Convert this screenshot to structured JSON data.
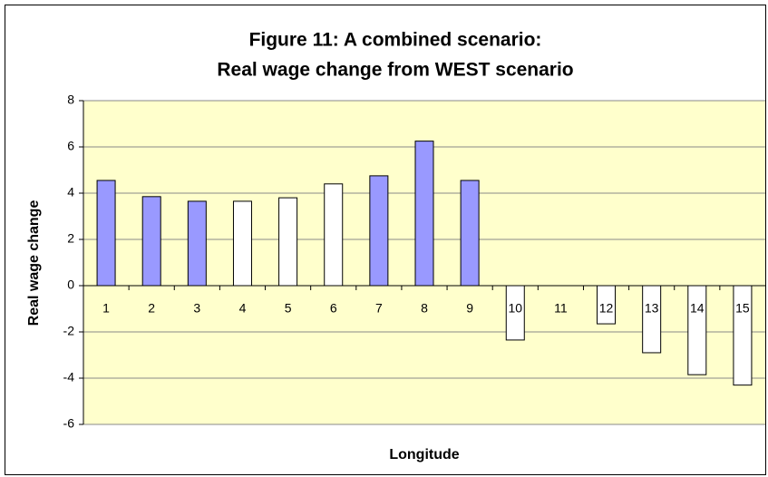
{
  "chart_data": {
    "type": "bar",
    "title_lines": [
      "Figure 11: A combined scenario:",
      "Real wage change from WEST scenario"
    ],
    "x_label": "Longitude",
    "y_label": "Real wage change",
    "categories": [
      "1",
      "2",
      "3",
      "4",
      "5",
      "6",
      "7",
      "8",
      "9",
      "10",
      "11",
      "12",
      "13",
      "14",
      "15"
    ],
    "values": [
      4.55,
      3.85,
      3.65,
      3.65,
      3.8,
      4.4,
      4.75,
      6.25,
      4.55,
      -2.35,
      0,
      -1.65,
      -2.9,
      -3.85,
      -4.3
    ],
    "colors": [
      "#9999ff",
      "#9999ff",
      "#9999ff",
      "#ffffff",
      "#ffffff",
      "#ffffff",
      "#9999ff",
      "#9999ff",
      "#9999ff",
      "#ffffff",
      "#ffffff",
      "#ffffff",
      "#ffffff",
      "#ffffff",
      "#ffffff"
    ],
    "ylim": [
      -6,
      8
    ],
    "yticks": [
      -6,
      -4,
      -2,
      0,
      2,
      4,
      6,
      8
    ],
    "grid": true,
    "plot_background": "#ffffcc"
  }
}
